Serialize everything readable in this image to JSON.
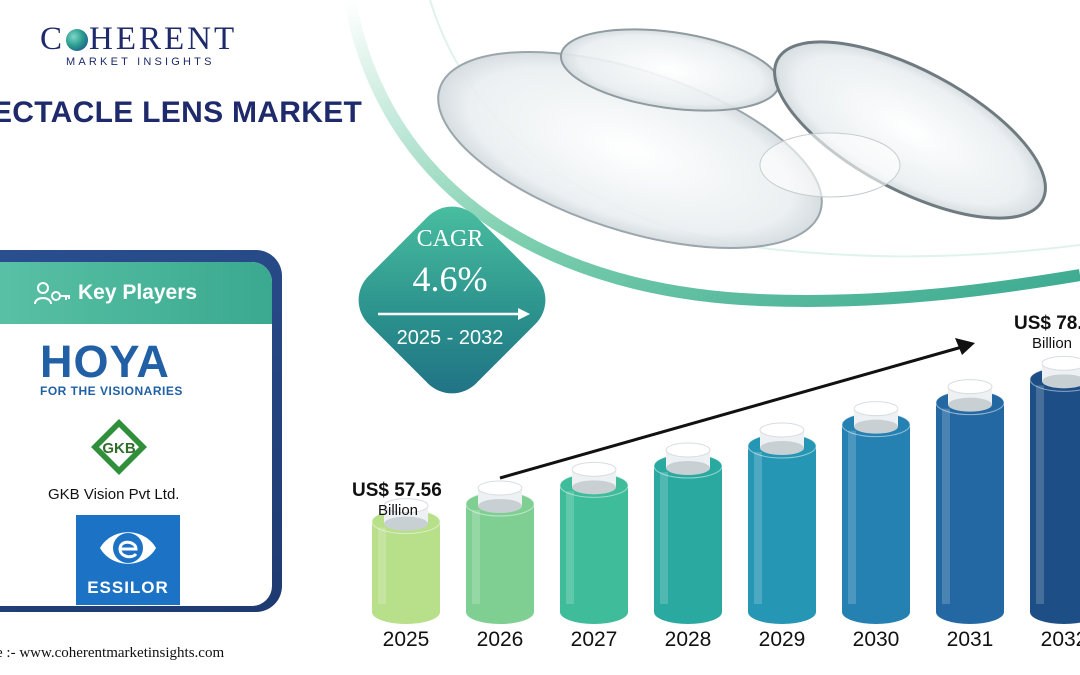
{
  "brand": {
    "logo_main_left": "C",
    "logo_main_right": "HERENT",
    "logo_sub": "MARKET INSIGHTS"
  },
  "page": {
    "title": "ECTACLE LENS MARKET",
    "source": "e :- www.coherentmarketinsights.com"
  },
  "cagr": {
    "label": "CAGR",
    "value": "4.6%",
    "range": "2025 - 2032"
  },
  "key_players": {
    "header": "Key Players",
    "hoya": "HOYA",
    "hoya_tagline": "FOR THE VISIONARIES",
    "gkb_badge": "GKB",
    "gkb_name": "GKB Vision Pvt  Ltd.",
    "essilor": "ESSILOR"
  },
  "annotations": {
    "first_value": "US$ 57.56",
    "first_unit": "Billion",
    "last_value": "US$ 78.",
    "last_unit": "Billion"
  },
  "colors": {
    "navy": "#1e2a6b",
    "teal": "#3aa98f",
    "hoya_blue": "#2260a6",
    "essilor_blue": "#1c72c4"
  },
  "chart_data": {
    "type": "bar",
    "categories": [
      "2025",
      "2026",
      "2027",
      "2028",
      "2029",
      "2030",
      "2031",
      "2032"
    ],
    "values": [
      57.56,
      60.2,
      63.0,
      65.9,
      68.9,
      72.1,
      75.4,
      78.9
    ],
    "colors": [
      "#b8df8a",
      "#7fcf93",
      "#3fbc9a",
      "#2aa9a0",
      "#2596b4",
      "#2481b2",
      "#2468a3",
      "#1d4f86"
    ],
    "ylim": [
      50,
      80
    ],
    "xlabel": "",
    "ylabel": ""
  }
}
